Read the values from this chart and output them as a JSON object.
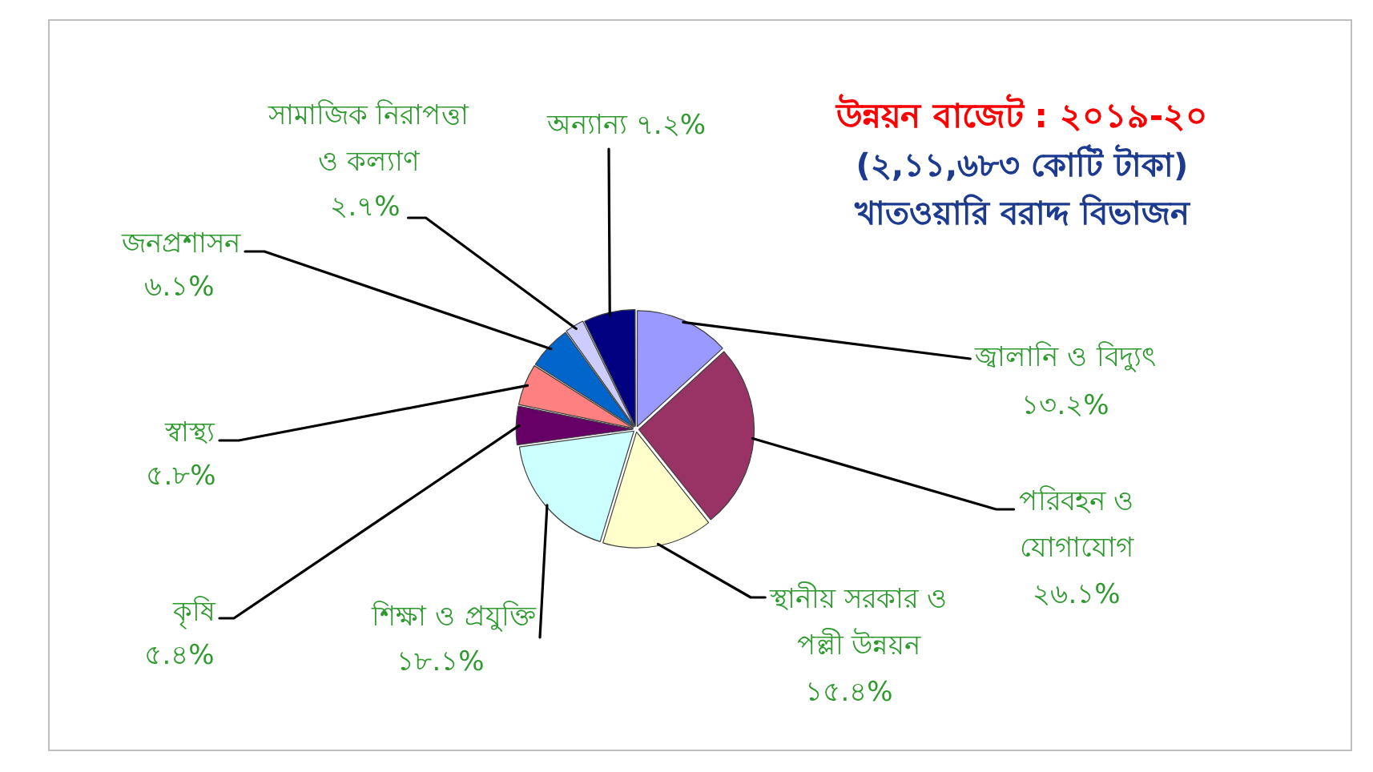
{
  "chart_data": {
    "type": "pie",
    "title": "উন্নয়ন বাজেট : ২০১৯-২০",
    "subtitle": "(২,১১,৬৮৩ কোটি টাকা)\nখাতওয়ারি বরাদ্দ বিভাজন",
    "categories": [
      "জ্বালানি ও বিদ্যুৎ",
      "পরিবহন ও যোগাযোগ",
      "স্থানীয় সরকার ও পল্লী উন্নয়ন",
      "শিক্ষা ও প্রযুক্তি",
      "কৃষি",
      "স্বাস্থ্য",
      "জনপ্রশাসন",
      "সামাজিক নিরাপত্তা ও কল্যাণ",
      "অন্যান্য"
    ],
    "values": [
      13.2,
      26.1,
      15.4,
      18.1,
      5.4,
      5.8,
      6.1,
      2.7,
      7.2
    ],
    "value_labels": [
      "১৩.২%",
      "২৬.১%",
      "১৫.৪%",
      "১৮.১%",
      "৫.৪%",
      "৫.৮%",
      "৬.১%",
      "২.৭%",
      "৭.২%"
    ],
    "colors": [
      "#9999ff",
      "#993366",
      "#ffffcc",
      "#ccffff",
      "#660066",
      "#ff8080",
      "#0066cc",
      "#ccccff",
      "#000080"
    ],
    "legend": false
  }
}
